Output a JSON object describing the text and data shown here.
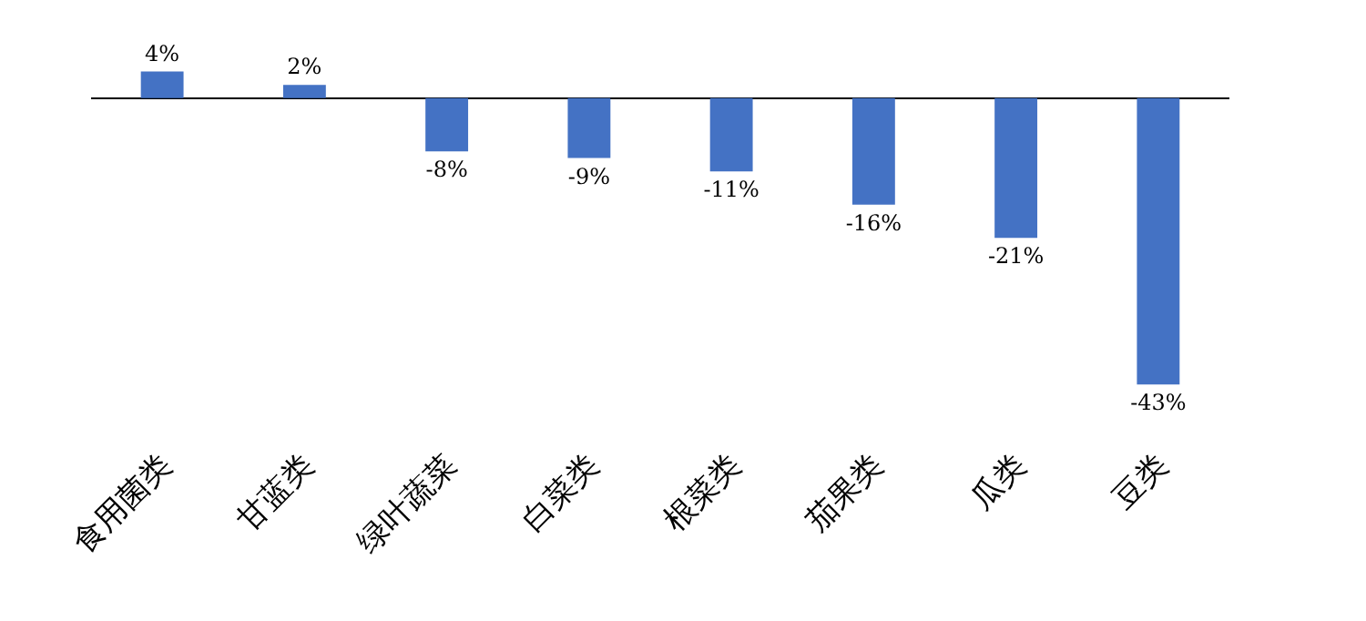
{
  "chart_data": {
    "type": "bar",
    "categories": [
      "食用菌类",
      "甘蓝类",
      "绿叶蔬菜",
      "白菜类",
      "根菜类",
      "茄果类",
      "瓜类",
      "豆类"
    ],
    "values": [
      4,
      2,
      -8,
      -9,
      -11,
      -16,
      -21,
      -43
    ],
    "value_labels": [
      "4%",
      "2%",
      "-8%",
      "-9%",
      "-11%",
      "-16%",
      "-21%",
      "-43%"
    ],
    "color": "#4472c4"
  }
}
